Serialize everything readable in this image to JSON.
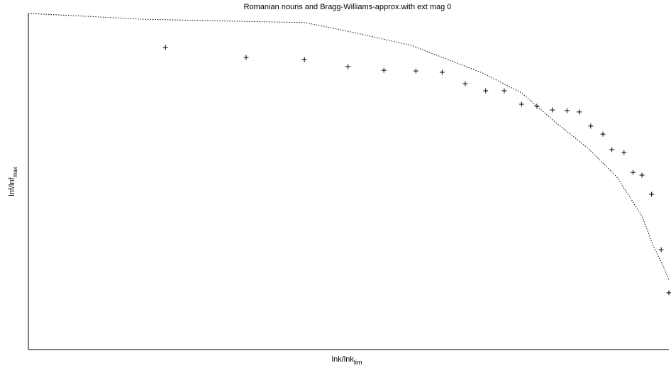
{
  "chart_data": {
    "type": "scatter",
    "title": "Romanian nouns and Bragg-Williams-approx.with ext mag 0",
    "x_label": "lnk/lnk",
    "x_label_sub": "lim",
    "y_label": "lnf/lnf",
    "y_label_sub": "max",
    "xlim": [
      0,
      1
    ],
    "ylim": [
      0,
      1
    ],
    "series": [
      {
        "kind": "points",
        "marker": "+",
        "color": "#000000",
        "x": [
          0.214,
          0.34,
          0.431,
          0.499,
          0.555,
          0.605,
          0.646,
          0.682,
          0.714,
          0.743,
          0.77,
          0.794,
          0.818,
          0.841,
          0.86,
          0.878,
          0.897,
          0.911,
          0.93,
          0.944,
          0.958,
          0.973,
          0.988,
          1.0
        ],
        "values": [
          0.899,
          0.869,
          0.863,
          0.842,
          0.831,
          0.829,
          0.825,
          0.791,
          0.77,
          0.77,
          0.73,
          0.724,
          0.713,
          0.711,
          0.707,
          0.665,
          0.641,
          0.595,
          0.586,
          0.527,
          0.519,
          0.462,
          0.297,
          0.169
        ]
      },
      {
        "kind": "line",
        "dash": "dotted",
        "color": "#000000",
        "x": [
          0,
          0.066,
          0.177,
          0.321,
          0.432,
          0.509,
          0.598,
          0.709,
          0.77,
          0.82,
          0.875,
          0.919,
          0.958,
          0.975,
          0.991,
          1.0
        ],
        "values": [
          1,
          0.994,
          0.983,
          0.977,
          0.973,
          0.943,
          0.905,
          0.823,
          0.764,
          0.681,
          0.597,
          0.513,
          0.397,
          0.312,
          0.249,
          0.207
        ]
      }
    ]
  }
}
